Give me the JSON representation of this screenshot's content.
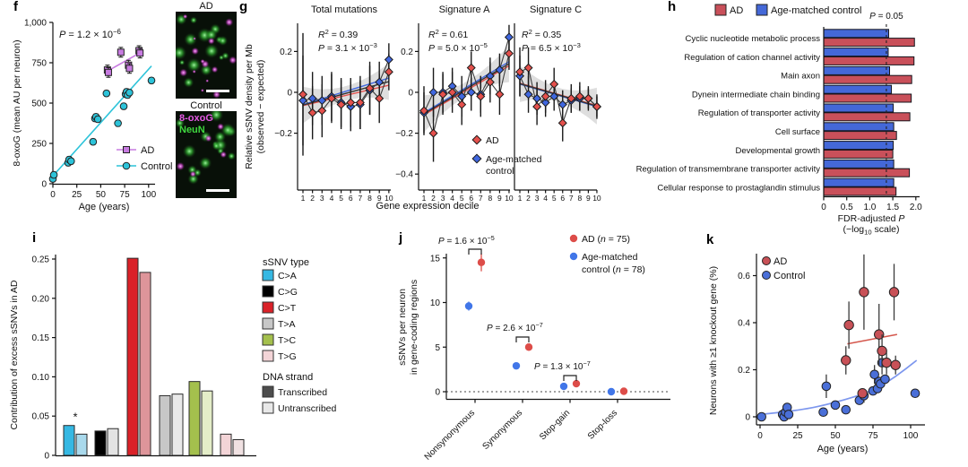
{
  "figure": {
    "panel_labels": {
      "f": "f",
      "g": "g",
      "h": "h",
      "i": "i",
      "j": "j",
      "k": "k"
    },
    "micrographs": {
      "title_top": "AD",
      "title_bottom": "Control",
      "stain_label_1": "8-oxoG",
      "stain_color_1": "#e55ae5",
      "stain_label_2": "NeuN",
      "stain_color_2": "#3fd83f",
      "background": "#081008",
      "green_signal": "#2fae2f",
      "magenta_signal": "#dd4fdd"
    }
  },
  "chart_data": [
    {
      "panel": "f",
      "type": "scatter",
      "xlabel": "Age (years)",
      "ylabel": "8-oxoG (mean AU per neuron)",
      "annotation": "~P~ = 1.2 × 10^(−6)",
      "xlim": [
        0,
        107
      ],
      "ylim": [
        0,
        1000
      ],
      "xticks": [
        0,
        25,
        50,
        75,
        100
      ],
      "yticks": [
        0,
        250,
        500,
        750,
        1000
      ],
      "ytick_labels": [
        "0",
        "250",
        "500",
        "750",
        "1,000"
      ],
      "series": [
        {
          "name": "AD",
          "marker": "square",
          "color": "#c77be0",
          "err": 30,
          "points": [
            [
              57,
              705
            ],
            [
              58,
              690
            ],
            [
              71,
              815
            ],
            [
              79,
              735
            ],
            [
              80,
              715
            ],
            [
              90,
              825
            ],
            [
              91,
              810
            ]
          ],
          "trend": [
            [
              56,
              695
            ],
            [
              92,
              815
            ]
          ]
        },
        {
          "name": "Control",
          "marker": "circle",
          "color": "#2cc3d9",
          "err": 18,
          "points": [
            [
              0,
              30
            ],
            [
              1,
              55
            ],
            [
              16,
              130
            ],
            [
              17,
              150
            ],
            [
              19,
              140
            ],
            [
              42,
              260
            ],
            [
              44,
              405
            ],
            [
              45,
              415
            ],
            [
              47,
              400
            ],
            [
              56,
              560
            ],
            [
              68,
              375
            ],
            [
              74,
              480
            ],
            [
              76,
              555
            ],
            [
              77,
              570
            ],
            [
              78,
              550
            ],
            [
              80,
              565
            ],
            [
              103,
              640
            ]
          ],
          "trend": [
            [
              0,
              48
            ],
            [
              103,
              730
            ]
          ]
        }
      ]
    },
    {
      "panel": "g",
      "type": "scatter-grid",
      "ylabel_line1": "Relative sSNV density per Mb",
      "ylabel_line2": "(observed − expected)",
      "xlabel": "Gene expression decile",
      "x": [
        1,
        2,
        3,
        4,
        5,
        6,
        7,
        8,
        9,
        10
      ],
      "ad_color": "#e4504c",
      "control_color": "#4067df",
      "legend_label_ad": "AD",
      "legend_label_control_1": "Age-matched",
      "legend_label_control_2": "control",
      "subplots": [
        {
          "title": "Total mutations",
          "r2": "~R~^(2) = 0.39",
          "p": "~P~ = 3.1 × 10^(−3)",
          "ytick_vals": [
            0.2,
            0,
            -0.2
          ],
          "ytick_labels": [
            "0.2",
            "0",
            "−0.2"
          ],
          "ad": [
            -0.01,
            -0.1,
            -0.09,
            -0.03,
            -0.06,
            -0.05,
            -0.05,
            0.02,
            -0.03,
            0.1
          ],
          "ad_err": [
            0.3,
            0.13,
            0.13,
            0.12,
            0.12,
            0.12,
            0.13,
            0.13,
            0.12,
            0.09
          ],
          "control": [
            -0.04,
            -0.03,
            -0.04,
            -0.02,
            -0.05,
            -0.07,
            -0.06,
            0.01,
            0.05,
            0.16
          ],
          "control_err": [
            0.22,
            0.13,
            0.12,
            0.12,
            0.12,
            0.12,
            0.12,
            0.12,
            0.1,
            0.08
          ],
          "trend_ad": [
            -0.065,
            0.035
          ],
          "trend_control": [
            -0.06,
            0.07
          ]
        },
        {
          "title": "Signature A",
          "r2": "~R~^(2) = 0.61",
          "p": "~P~ = 5.0 × 10^(−5)",
          "ytick_vals": [
            0.2,
            0,
            -0.2,
            -0.4
          ],
          "ytick_labels": [
            "0.2",
            "0",
            "−0.2",
            "−0.4"
          ],
          "ad": [
            -0.09,
            -0.2,
            -0.01,
            0.0,
            -0.06,
            0.12,
            -0.02,
            0.05,
            -0.01,
            0.19
          ],
          "ad_err": [
            0.12,
            0.14,
            0.1,
            0.1,
            0.1,
            0.08,
            0.1,
            0.1,
            0.1,
            0.08
          ],
          "control": [
            -0.1,
            0.0,
            0.0,
            0.03,
            -0.02,
            0.0,
            -0.01,
            0.08,
            0.11,
            0.27
          ],
          "control_err": [
            0.1,
            0.12,
            0.1,
            0.09,
            0.1,
            0.09,
            0.09,
            0.09,
            0.08,
            0.06
          ],
          "trend_ad": [
            -0.11,
            0.13
          ],
          "trend_control": [
            -0.1,
            0.15
          ]
        },
        {
          "title": "Signature C",
          "r2": "~R~^(2) = 0.35",
          "p": "~P~ = 6.5 × 10^(−3)",
          "ytick_vals": [],
          "ytick_labels": [],
          "ad": [
            0.1,
            0.12,
            -0.07,
            -0.02,
            0.04,
            -0.15,
            -0.03,
            -0.02,
            -0.03,
            -0.07
          ],
          "ad_err": [
            0.12,
            0.1,
            0.09,
            0.08,
            0.08,
            0.09,
            0.07,
            0.07,
            0.06,
            0.06
          ],
          "control": [
            0.08,
            -0.01,
            -0.03,
            -0.05,
            -0.02,
            -0.06,
            -0.04,
            -0.03,
            -0.03,
            -0.07
          ],
          "control_err": [
            0.1,
            0.09,
            0.08,
            0.07,
            0.07,
            0.07,
            0.06,
            0.06,
            0.05,
            0.05
          ],
          "trend_ad": [
            0.045,
            -0.065
          ],
          "trend_control": [
            0.04,
            -0.07
          ]
        }
      ]
    },
    {
      "panel": "h",
      "type": "bar-horizontal",
      "legend": [
        {
          "label": "AD",
          "color": "#c9505a"
        },
        {
          "label": "Age-matched control",
          "color": "#4468d8"
        }
      ],
      "threshold_label": "~P~ = 0.05",
      "threshold_value": 1.36,
      "categories": [
        "Cyclic nucleotide metabolic process",
        "Regulation of cation channel activity",
        "Main axon",
        "Dynein intermediate chain binding",
        "Regulation of transporter activity",
        "Cell surface",
        "Developmental growth",
        "Regulation of transmembrane transporter activity",
        "Cellular response to prostaglandin stimulus"
      ],
      "control_values": [
        1.41,
        1.4,
        1.43,
        1.47,
        1.51,
        1.52,
        1.51,
        1.52,
        1.52
      ],
      "ad_values": [
        1.97,
        1.96,
        1.91,
        1.9,
        1.87,
        1.58,
        1.5,
        1.86,
        1.57
      ],
      "xlim": [
        0,
        2.0
      ],
      "xticks": [
        0,
        0.5,
        1.0,
        1.5,
        2.0
      ],
      "xtick_labels": [
        "0",
        "0.5",
        "1.0",
        "1.5",
        "2.0"
      ],
      "xlabel": "FDR-adjusted ~P~",
      "xlabel2": "(−log_(10) scale)"
    },
    {
      "panel": "i",
      "type": "bar-pairs",
      "ylabel": "Contribution of excess sSNVs in AD",
      "ylim": [
        0,
        0.26
      ],
      "ytick_vals": [
        0,
        0.05,
        0.1,
        0.15,
        0.2,
        0.25
      ],
      "ytick_labels": [
        "0",
        "0.05",
        "0.10",
        "0.15",
        "0.20",
        "0.25"
      ],
      "star_label": "*",
      "groups": [
        {
          "label": "C>A",
          "transcribed": 0.038,
          "untranscribed": 0.027,
          "color": "#35b8e3",
          "color_light": "#a9d9ec"
        },
        {
          "label": "C>G",
          "transcribed": 0.031,
          "untranscribed": 0.034,
          "color": "#000000",
          "color_light": "#e3e3e3"
        },
        {
          "label": "C>T",
          "transcribed": 0.251,
          "untranscribed": 0.233,
          "color": "#da2128",
          "color_light": "#de959a"
        },
        {
          "label": "T>A",
          "transcribed": 0.076,
          "untranscribed": 0.078,
          "color": "#c7c7c7",
          "color_light": "#e9e9e9"
        },
        {
          "label": "T>C",
          "transcribed": 0.094,
          "untranscribed": 0.082,
          "color": "#a4c04d",
          "color_light": "#e4edc8"
        },
        {
          "label": "T>G",
          "transcribed": 0.027,
          "untranscribed": 0.02,
          "color": "#f3d4d7",
          "color_light": "#f0e1e2"
        }
      ],
      "legend_type_title": "sSNV type",
      "legend_strand_title": "DNA strand",
      "legend_strand": [
        {
          "label": "Transcribed",
          "color": "#4d4d4d"
        },
        {
          "label": "Untranscribed",
          "color": "#e8e8e8"
        }
      ]
    },
    {
      "panel": "j",
      "type": "dot-categories",
      "ylabel_line1": "sSNVs per neuron",
      "ylabel_line2": "in gene-coding regions",
      "categories": [
        "Nonsynonymous",
        "Synonymous",
        "Stop-gain",
        "Stop-loss"
      ],
      "yticks": [
        0,
        5,
        10,
        15
      ],
      "ad_color": "#dd4d49",
      "control_color": "#4176e8",
      "ad_values": [
        14.5,
        5.0,
        0.9,
        0.05
      ],
      "ad_err": [
        1.0,
        0.35,
        0.15,
        0.05
      ],
      "control_values": [
        9.6,
        2.9,
        0.6,
        0.0
      ],
      "control_err": [
        0.5,
        0.25,
        0.1,
        0.03
      ],
      "pvalues": [
        "~P~ = 1.6 × 10^(−5)",
        "~P~ = 2.6 × 10^(−7)",
        "~P~ = 1.3 × 10^(−7)"
      ],
      "legend_ad": "AD (~n~ = 75)",
      "legend_control_1": "Age-matched",
      "legend_control_2": "control (~n~ = 78)"
    },
    {
      "panel": "k",
      "type": "scatter",
      "xlabel": "Age (years)",
      "ylabel": "Neurons with ≥1 knockout gene (%)",
      "xticks": [
        0,
        25,
        50,
        75,
        100
      ],
      "ytick_vals": [
        0,
        0.2,
        0.4,
        0.6
      ],
      "ytick_labels": [
        "0",
        "0.2",
        "0.4",
        "0.6"
      ],
      "ad_color": "#c85157",
      "control_color": "#4a6fd8",
      "trend_color": "#d4564b",
      "curve_color": "#7d97ee",
      "legend": [
        {
          "label": "AD",
          "color": "#c85157"
        },
        {
          "label": "Control",
          "color": "#4a6fd8"
        }
      ],
      "ad_points": [
        [
          57,
          0.24,
          0.06
        ],
        [
          59,
          0.39,
          0.1
        ],
        [
          68,
          0.1,
          0.02
        ],
        [
          69,
          0.53,
          0.16
        ],
        [
          79,
          0.35,
          0.13
        ],
        [
          81,
          0.28,
          0.07
        ],
        [
          84,
          0.23,
          0.05
        ],
        [
          89,
          0.53,
          0.12
        ],
        [
          90,
          0.22,
          0.04
        ]
      ],
      "control_points": [
        [
          1,
          0,
          0
        ],
        [
          15,
          0.01,
          0
        ],
        [
          16,
          0,
          0
        ],
        [
          17,
          0.02,
          0
        ],
        [
          18,
          0.04,
          0
        ],
        [
          19,
          0.01,
          0
        ],
        [
          42,
          0.02,
          0
        ],
        [
          44,
          0.13,
          0.05
        ],
        [
          50,
          0.05,
          0
        ],
        [
          57,
          0.03,
          0
        ],
        [
          66,
          0.07,
          0
        ],
        [
          69,
          0.09,
          0.03
        ],
        [
          75,
          0.11,
          0
        ],
        [
          76,
          0.18,
          0.04
        ],
        [
          78,
          0.12,
          0
        ],
        [
          79,
          0.15,
          0
        ],
        [
          80,
          0.14,
          0
        ],
        [
          81,
          0.23,
          0.05
        ],
        [
          83,
          0.16,
          0
        ],
        [
          103,
          0.1,
          0
        ]
      ],
      "trend_ad": [
        [
          58,
          0.31
        ],
        [
          91,
          0.35
        ]
      ],
      "curve_control": [
        [
          0,
          0.01
        ],
        [
          25,
          0.025
        ],
        [
          50,
          0.06
        ],
        [
          75,
          0.11
        ],
        [
          90,
          0.17
        ],
        [
          104,
          0.24
        ]
      ]
    }
  ]
}
